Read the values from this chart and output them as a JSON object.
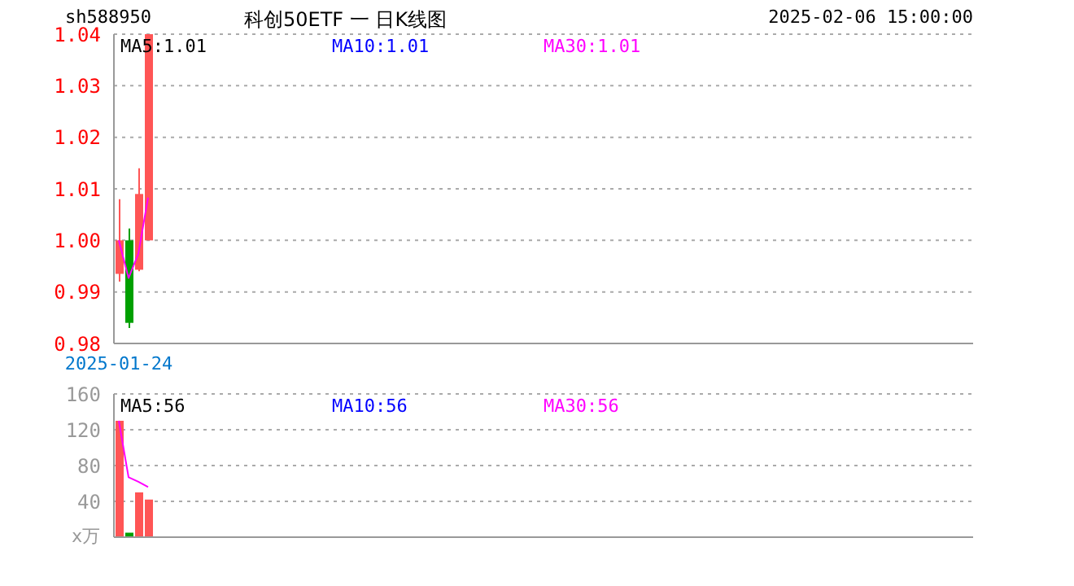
{
  "chart_data": [
    {
      "type": "candlestick",
      "annotations": [
        "sh588950",
        "科创50ETF 一 日K线图",
        "2025-02-06 15:00:00",
        "MA5:1.01",
        "MA10:1.01",
        "MA30:1.01"
      ],
      "categories": [
        "2025-01-24",
        null,
        null,
        null
      ],
      "ohlc": [
        [
          0.9935,
          1.008,
          0.992,
          1.0
        ],
        [
          1.0,
          1.0023,
          0.983,
          0.984
        ],
        [
          0.9943,
          1.014,
          0.994,
          1.009
        ],
        [
          1.0,
          1.04,
          1.0,
          1.04
        ]
      ],
      "colors": [
        "#ff5555",
        "#00a000",
        "#ff5555",
        "#ff5555"
      ],
      "series": [
        {
          "type": "line",
          "color": "#ff00ff",
          "values": [
            1.0,
            0.9927,
            0.9974,
            1.0083
          ]
        }
      ],
      "ylim": [
        0.98,
        1.04
      ],
      "yticks": [
        0.98,
        0.99,
        {
          "value": 1,
          "label": "1.00"
        },
        1.01,
        1.02,
        1.03,
        1.04
      ],
      "grid": "y",
      "marker": "none"
    },
    {
      "type": "bar",
      "ylabel": "x万",
      "annotations": [
        "MA5:56",
        "MA10:56",
        "MA30:56"
      ],
      "categories": [
        null,
        null,
        null,
        null
      ],
      "series": [
        {
          "type": "bar",
          "colors": [
            "#ff5555",
            "#00a000",
            "#ff5555",
            "#ff5555"
          ],
          "values": [
            130,
            5,
            50,
            42
          ]
        },
        {
          "type": "line",
          "color": "#ff00ff",
          "values": [
            130,
            67,
            62,
            56
          ]
        }
      ],
      "ylim": [
        0,
        160
      ],
      "yticks": [
        {
          "value": 0,
          "label": null
        },
        40,
        80,
        120,
        160
      ],
      "grid": "y",
      "tick_labels": "y",
      "marker": "none"
    }
  ]
}
